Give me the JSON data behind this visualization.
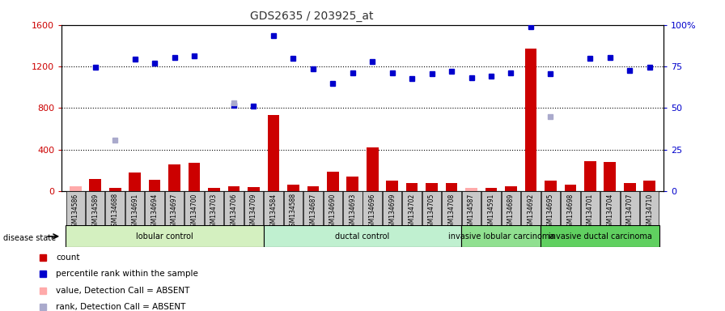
{
  "title": "GDS2635 / 203925_at",
  "samples": [
    "GSM134586",
    "GSM134589",
    "GSM134688",
    "GSM134691",
    "GSM134694",
    "GSM134697",
    "GSM134700",
    "GSM134703",
    "GSM134706",
    "GSM134709",
    "GSM134584",
    "GSM134588",
    "GSM134687",
    "GSM134690",
    "GSM134693",
    "GSM134696",
    "GSM134699",
    "GSM134702",
    "GSM134705",
    "GSM134708",
    "GSM134587",
    "GSM134591",
    "GSM134689",
    "GSM134692",
    "GSM134695",
    "GSM134698",
    "GSM134701",
    "GSM134704",
    "GSM134707",
    "GSM134710"
  ],
  "count_values": [
    50,
    120,
    30,
    180,
    110,
    260,
    270,
    30,
    50,
    40,
    730,
    60,
    50,
    190,
    140,
    420,
    100,
    80,
    80,
    80,
    50,
    30,
    50,
    1370,
    100,
    60,
    290,
    280,
    80,
    100
  ],
  "rank_values": [
    null,
    1190,
    null,
    1270,
    1230,
    1290,
    1300,
    null,
    830,
    820,
    1500,
    1280,
    1180,
    1040,
    1140,
    1250,
    1140,
    1080,
    1130,
    1150,
    1090,
    1110,
    1140,
    1580,
    1130,
    null,
    1280,
    1290,
    1160,
    1190
  ],
  "absent_count": [
    50,
    null,
    null,
    null,
    null,
    null,
    null,
    null,
    null,
    null,
    null,
    null,
    null,
    null,
    null,
    null,
    null,
    null,
    null,
    null,
    30,
    null,
    null,
    null,
    null,
    null,
    null,
    null,
    null,
    null
  ],
  "absent_rank": [
    null,
    null,
    490,
    null,
    null,
    null,
    null,
    null,
    850,
    null,
    null,
    null,
    null,
    null,
    null,
    null,
    null,
    null,
    null,
    null,
    null,
    null,
    null,
    null,
    720,
    null,
    null,
    null,
    null,
    null
  ],
  "groups": [
    {
      "label": "lobular control",
      "start": 0,
      "end": 10,
      "color": "#d4f0c0"
    },
    {
      "label": "ductal control",
      "start": 10,
      "end": 20,
      "color": "#c0f0d0"
    },
    {
      "label": "invasive lobular carcinoma",
      "start": 20,
      "end": 24,
      "color": "#90e090"
    },
    {
      "label": "invasive ductal carcinoma",
      "start": 24,
      "end": 30,
      "color": "#60d060"
    }
  ],
  "ylim_left": [
    0,
    1600
  ],
  "yticks_left": [
    0,
    400,
    800,
    1200,
    1600
  ],
  "ytick_labels_left": [
    "0",
    "400",
    "800",
    "1200",
    "1600"
  ],
  "yticks_right": [
    0,
    25,
    50,
    75,
    100
  ],
  "ytick_labels_right": [
    "0",
    "25",
    "50",
    "75",
    "100%"
  ],
  "hlines": [
    400,
    800,
    1200
  ],
  "bar_color": "#cc0000",
  "rank_color": "#0000cc",
  "absent_count_color": "#ffaaaa",
  "absent_rank_color": "#aaaacc",
  "bg_sample_labels": "#c8c8c8",
  "title_color": "#333333",
  "left_axis_color": "#cc0000",
  "right_axis_color": "#0000cc",
  "legend_items": [
    {
      "color": "#cc0000",
      "marker": "s",
      "label": "count"
    },
    {
      "color": "#0000cc",
      "marker": "s",
      "label": "percentile rank within the sample"
    },
    {
      "color": "#ffaaaa",
      "marker": "s",
      "label": "value, Detection Call = ABSENT"
    },
    {
      "color": "#aaaacc",
      "marker": "s",
      "label": "rank, Detection Call = ABSENT"
    }
  ]
}
